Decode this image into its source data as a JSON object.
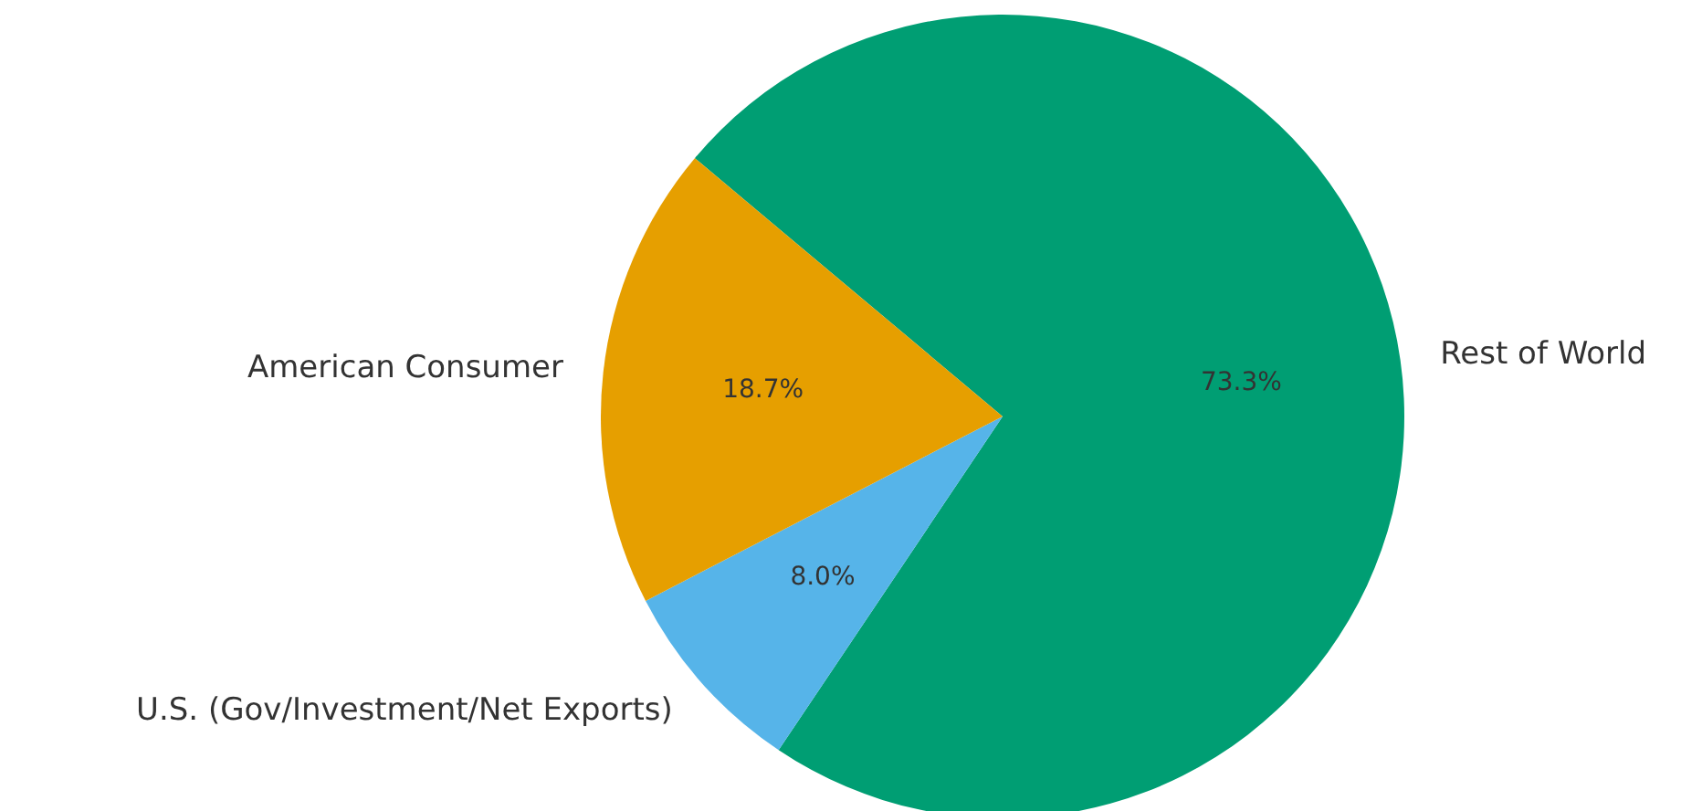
{
  "chart_data": {
    "type": "pie",
    "categories": [
      "American Consumer",
      "U.S. (Gov/Investment/Net Exports)",
      "Rest of World"
    ],
    "values": [
      18.7,
      8.0,
      73.3
    ],
    "value_labels": [
      "18.7%",
      "8.0%",
      "73.3%"
    ],
    "colors": [
      "#e69f00",
      "#56b4e9",
      "#009e73"
    ]
  }
}
